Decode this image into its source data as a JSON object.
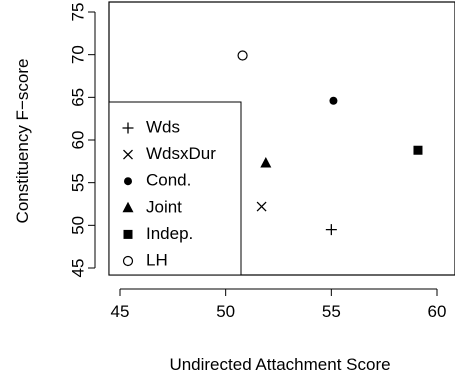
{
  "chart_data": {
    "type": "scatter",
    "xlabel": "Undirected Attachment Score",
    "ylabel": "Constituency F−score",
    "xlim": [
      45,
      60
    ],
    "ylim": [
      44,
      76
    ],
    "xticks": [
      45,
      50,
      55,
      60
    ],
    "yticks": [
      45,
      50,
      55,
      60,
      65,
      70,
      75
    ],
    "grid": false,
    "legend_position": "bottom-left",
    "series": [
      {
        "name": "Wds",
        "marker": "plus",
        "x": 55.0,
        "y": 49.5
      },
      {
        "name": "WdsxDur",
        "marker": "cross",
        "x": 51.7,
        "y": 52.2
      },
      {
        "name": "Cond.",
        "marker": "filled-circle",
        "x": 55.1,
        "y": 64.6
      },
      {
        "name": "Joint",
        "marker": "filled-triangle",
        "x": 51.9,
        "y": 57.3
      },
      {
        "name": "Indep.",
        "marker": "filled-square",
        "x": 59.1,
        "y": 58.8
      },
      {
        "name": "LH",
        "marker": "open-circle",
        "x": 50.8,
        "y": 69.9
      }
    ]
  }
}
